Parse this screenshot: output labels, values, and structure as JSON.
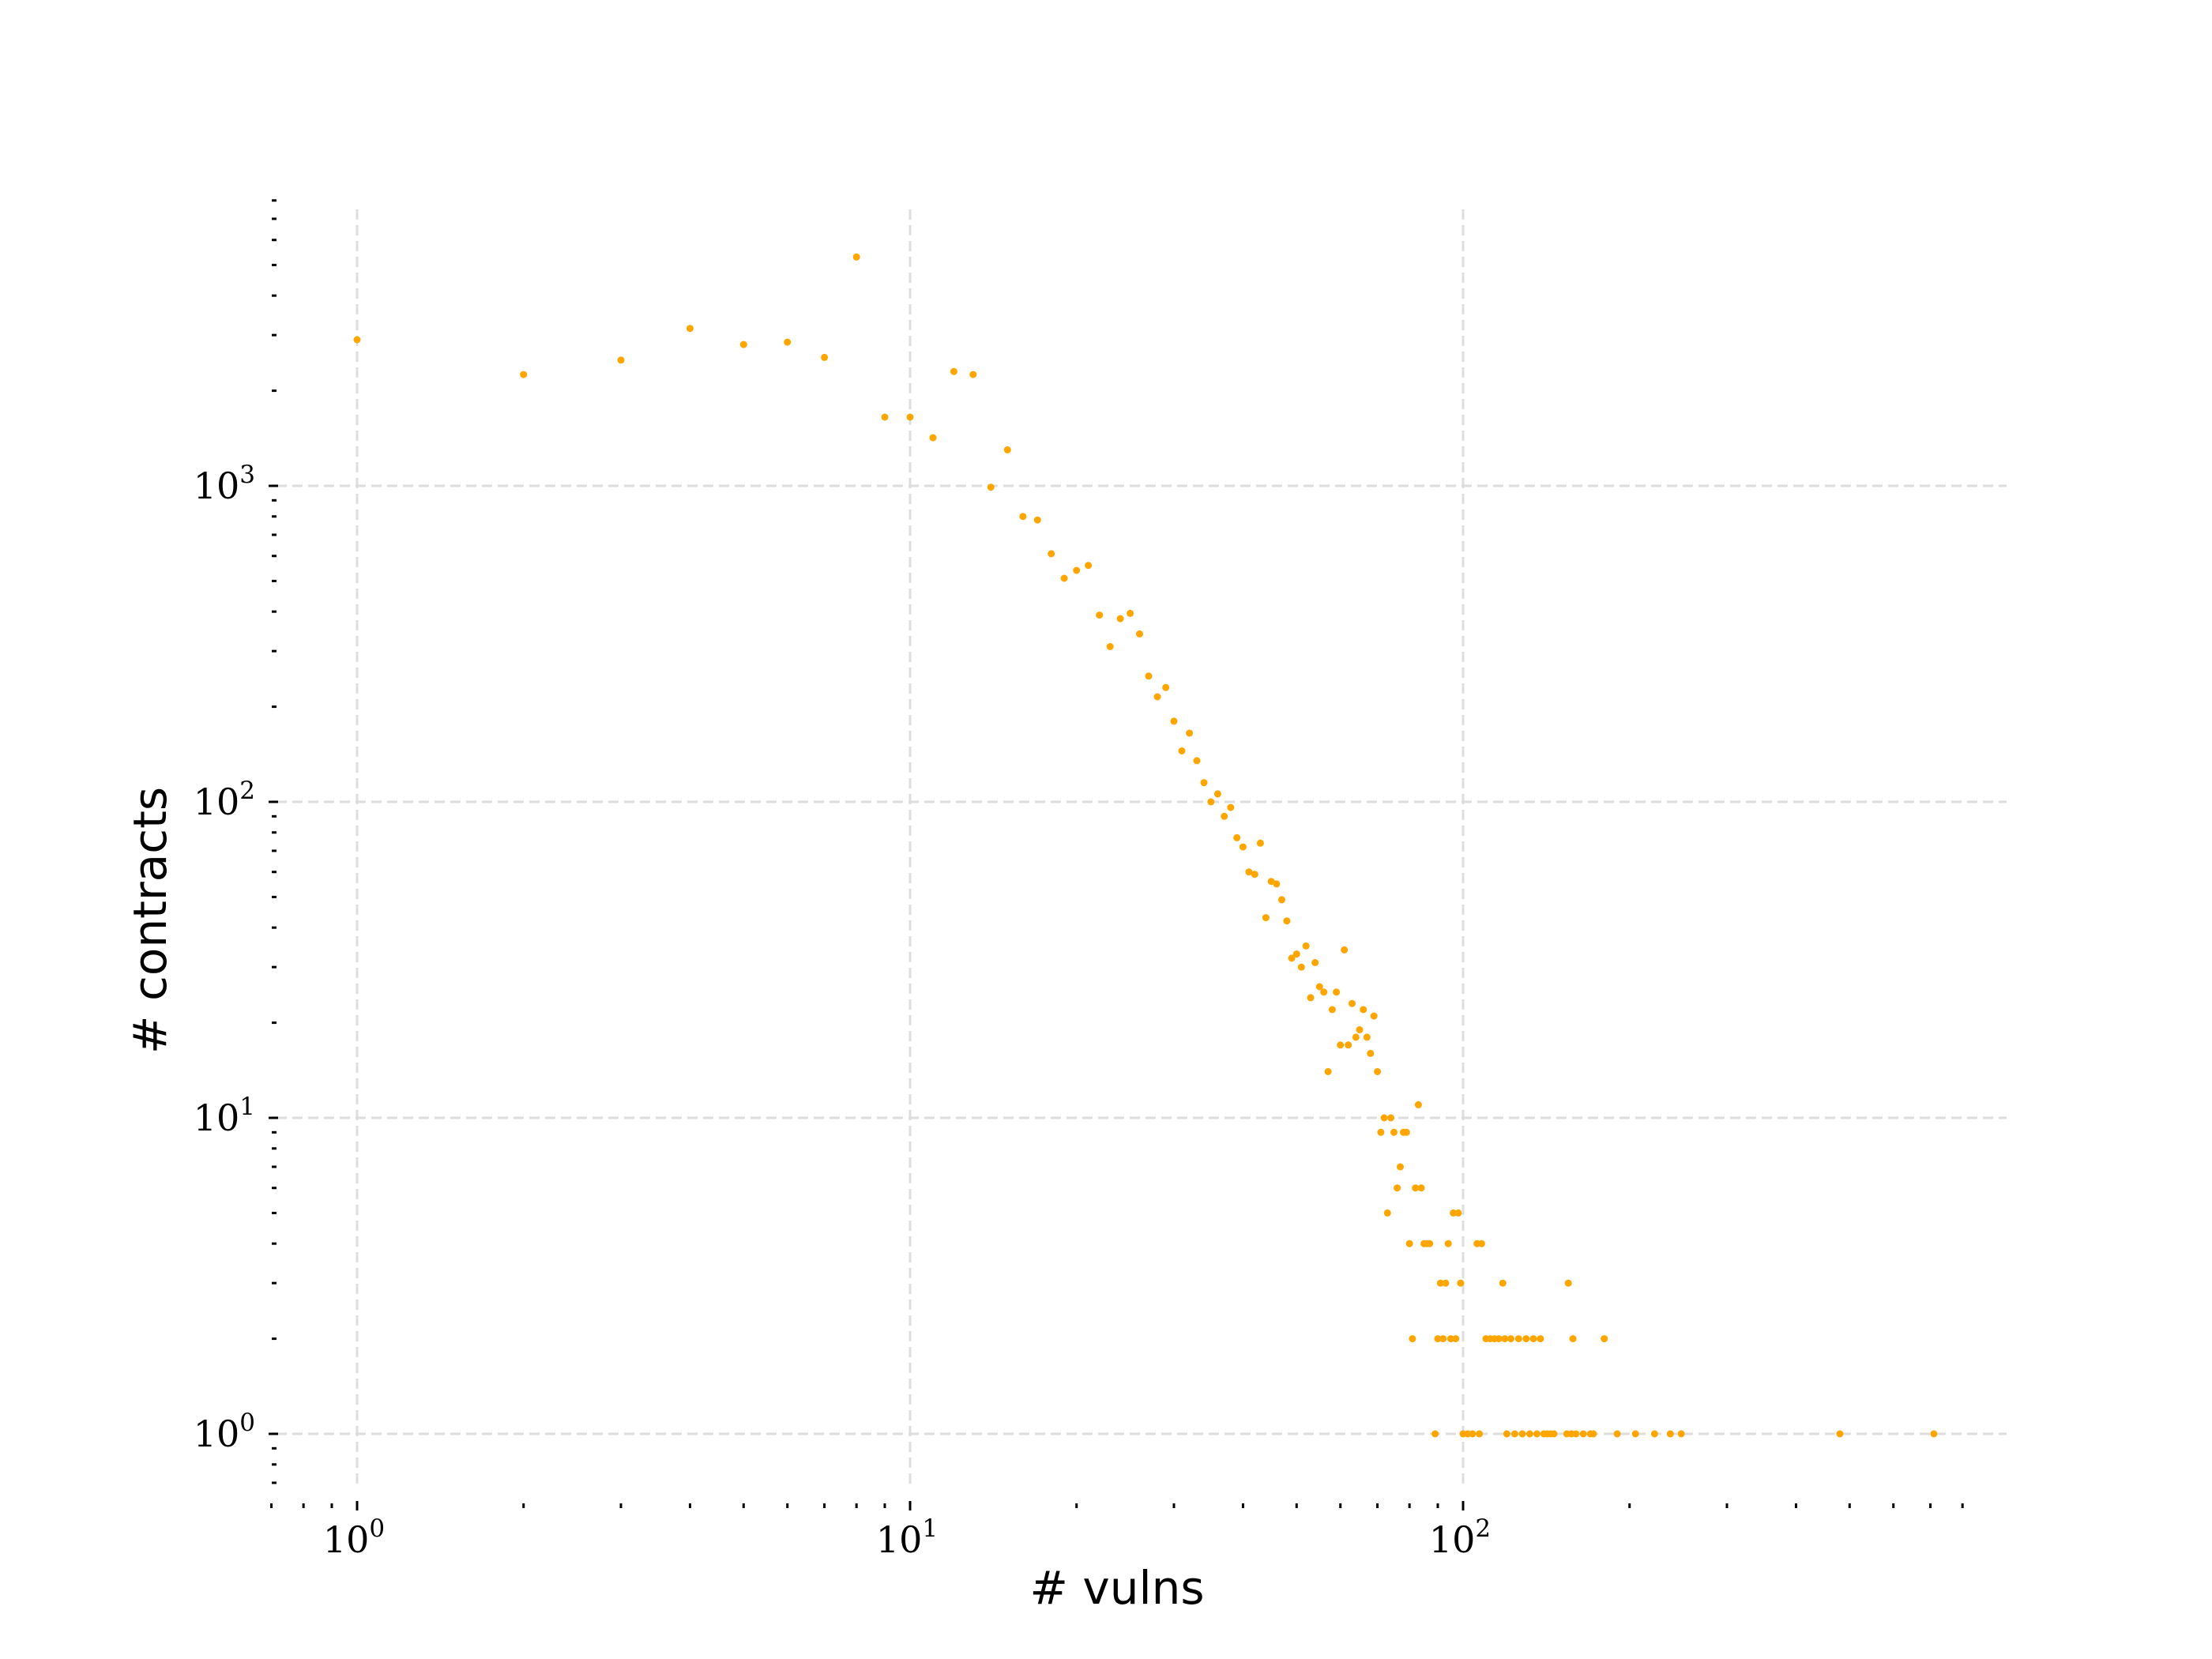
{
  "chart_data": {
    "type": "scatter",
    "xlabel": "# vulns",
    "ylabel": "# contracts",
    "xscale": "log",
    "yscale": "log",
    "xlim": [
      0.7,
      850
    ],
    "ylim": [
      0.7,
      8000
    ],
    "grid": true,
    "marker_color": "#ffa500",
    "grid_color": "#dddddd",
    "x_ticks": [
      {
        "base": "10",
        "exp": "0",
        "value": 1
      },
      {
        "base": "10",
        "exp": "1",
        "value": 10
      },
      {
        "base": "10",
        "exp": "2",
        "value": 100
      }
    ],
    "y_ticks": [
      {
        "base": "10",
        "exp": "0",
        "value": 1
      },
      {
        "base": "10",
        "exp": "1",
        "value": 10
      },
      {
        "base": "10",
        "exp": "2",
        "value": 100
      },
      {
        "base": "10",
        "exp": "3",
        "value": 1000
      }
    ],
    "points": [
      [
        1,
        2900
      ],
      [
        2,
        2250
      ],
      [
        3,
        2500
      ],
      [
        4,
        3150
      ],
      [
        5,
        2800
      ],
      [
        6,
        2850
      ],
      [
        7,
        2550
      ],
      [
        8,
        5300
      ],
      [
        9,
        1650
      ],
      [
        10,
        1650
      ],
      [
        11,
        1420
      ],
      [
        12,
        2300
      ],
      [
        13,
        2250
      ],
      [
        14,
        990
      ],
      [
        15,
        1300
      ],
      [
        16,
        800
      ],
      [
        17,
        780
      ],
      [
        18,
        610
      ],
      [
        19,
        510
      ],
      [
        20,
        540
      ],
      [
        21,
        560
      ],
      [
        22,
        390
      ],
      [
        23,
        310
      ],
      [
        24,
        380
      ],
      [
        25,
        395
      ],
      [
        26,
        340
      ],
      [
        27,
        250
      ],
      [
        28,
        215
      ],
      [
        29,
        230
      ],
      [
        30,
        180
      ],
      [
        31,
        145
      ],
      [
        32,
        165
      ],
      [
        33,
        135
      ],
      [
        34,
        115
      ],
      [
        35,
        100
      ],
      [
        36,
        106
      ],
      [
        37,
        90
      ],
      [
        38,
        96
      ],
      [
        39,
        77
      ],
      [
        40,
        72
      ],
      [
        41,
        60
      ],
      [
        42,
        59
      ],
      [
        43,
        74
      ],
      [
        44,
        43
      ],
      [
        45,
        56
      ],
      [
        46,
        55
      ],
      [
        47,
        49
      ],
      [
        48,
        42
      ],
      [
        49,
        32
      ],
      [
        50,
        33
      ],
      [
        51,
        30
      ],
      [
        52,
        35
      ],
      [
        53,
        24
      ],
      [
        54,
        31
      ],
      [
        55,
        26
      ],
      [
        56,
        25
      ],
      [
        57,
        14
      ],
      [
        58,
        22
      ],
      [
        59,
        25
      ],
      [
        60,
        17
      ],
      [
        61,
        34
      ],
      [
        62,
        17
      ],
      [
        63,
        23
      ],
      [
        64,
        18
      ],
      [
        65,
        19
      ],
      [
        66,
        22
      ],
      [
        67,
        18
      ],
      [
        68,
        16
      ],
      [
        69,
        21
      ],
      [
        70,
        14
      ],
      [
        71,
        9
      ],
      [
        72,
        10
      ],
      [
        73,
        5
      ],
      [
        74,
        10
      ],
      [
        75,
        9
      ],
      [
        76,
        6
      ],
      [
        77,
        7
      ],
      [
        78,
        9
      ],
      [
        79,
        9
      ],
      [
        80,
        4
      ],
      [
        81,
        2
      ],
      [
        82,
        6
      ],
      [
        83,
        11
      ],
      [
        84,
        6
      ],
      [
        85,
        4
      ],
      [
        86,
        4
      ],
      [
        87,
        4
      ],
      [
        89,
        1
      ],
      [
        90,
        2
      ],
      [
        91,
        3
      ],
      [
        92,
        2
      ],
      [
        93,
        3
      ],
      [
        94,
        4
      ],
      [
        95,
        2
      ],
      [
        96,
        5
      ],
      [
        97,
        2
      ],
      [
        98,
        5
      ],
      [
        99,
        3
      ],
      [
        100,
        1
      ],
      [
        102,
        1
      ],
      [
        104,
        1
      ],
      [
        106,
        4
      ],
      [
        107,
        1
      ],
      [
        108,
        4
      ],
      [
        110,
        2
      ],
      [
        112,
        2
      ],
      [
        114,
        2
      ],
      [
        116,
        2
      ],
      [
        118,
        3
      ],
      [
        119,
        2
      ],
      [
        120,
        1
      ],
      [
        122,
        2
      ],
      [
        124,
        1
      ],
      [
        126,
        2
      ],
      [
        128,
        1
      ],
      [
        130,
        2
      ],
      [
        132,
        1
      ],
      [
        134,
        2
      ],
      [
        136,
        1
      ],
      [
        138,
        2
      ],
      [
        140,
        1
      ],
      [
        142,
        1
      ],
      [
        144,
        1
      ],
      [
        146,
        1
      ],
      [
        154,
        1
      ],
      [
        155,
        3
      ],
      [
        157,
        1
      ],
      [
        158,
        2
      ],
      [
        160,
        1
      ],
      [
        165,
        1
      ],
      [
        170,
        1
      ],
      [
        172,
        1
      ],
      [
        180,
        2
      ],
      [
        190,
        1
      ],
      [
        205,
        1
      ],
      [
        222,
        1
      ],
      [
        237,
        1
      ],
      [
        248,
        1
      ],
      [
        480,
        1
      ],
      [
        710,
        1
      ]
    ]
  }
}
